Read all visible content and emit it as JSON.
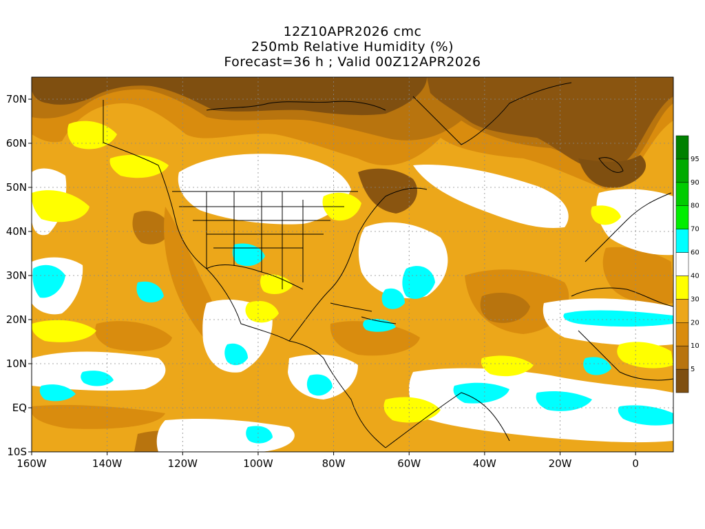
{
  "header": {
    "line1": "12Z10APR2026 cmc",
    "line2": "250mb Relative Humidity (%)",
    "line3": "Forecast=36 h ; Valid 00Z12APR2026"
  },
  "map": {
    "lat_range": [
      -10,
      75
    ],
    "lon_range": [
      -160,
      10
    ],
    "lat_ticks": [
      {
        "value": 70,
        "label": "70N"
      },
      {
        "value": 60,
        "label": "60N"
      },
      {
        "value": 50,
        "label": "50N"
      },
      {
        "value": 40,
        "label": "40N"
      },
      {
        "value": 30,
        "label": "30N"
      },
      {
        "value": 20,
        "label": "20N"
      },
      {
        "value": 10,
        "label": "10N"
      },
      {
        "value": 0,
        "label": "EQ"
      },
      {
        "value": -10,
        "label": "10S"
      }
    ],
    "lon_ticks": [
      {
        "value": -160,
        "label": "160W"
      },
      {
        "value": -140,
        "label": "140W"
      },
      {
        "value": -120,
        "label": "120W"
      },
      {
        "value": -100,
        "label": "100W"
      },
      {
        "value": -80,
        "label": "80W"
      },
      {
        "value": -60,
        "label": "60W"
      },
      {
        "value": -40,
        "label": "40W"
      },
      {
        "value": -20,
        "label": "20W"
      },
      {
        "value": 0,
        "label": "0"
      }
    ]
  },
  "colorbar": {
    "levels": [
      {
        "label": "",
        "color": "#7f4f10"
      },
      {
        "label": "5",
        "color": "#b8740e"
      },
      {
        "label": "10",
        "color": "#d98c0e"
      },
      {
        "label": "20",
        "color": "#eca71a"
      },
      {
        "label": "30",
        "color": "#ffff00"
      },
      {
        "label": "40",
        "color": "#ffffff"
      },
      {
        "label": "60",
        "color": "#00ffff"
      },
      {
        "label": "70",
        "color": "#00ee00"
      },
      {
        "label": "80",
        "color": "#00cc00"
      },
      {
        "label": "90",
        "color": "#00aa00"
      },
      {
        "label": "95",
        "color": "#008000"
      }
    ]
  }
}
